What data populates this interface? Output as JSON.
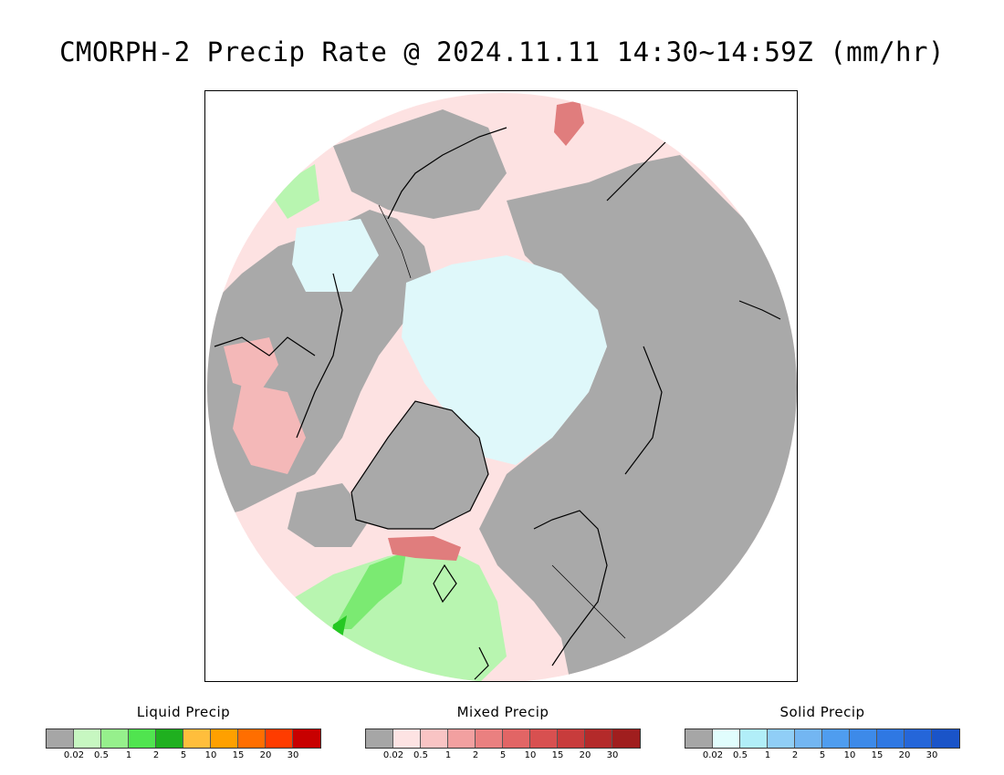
{
  "title": "CMORPH-2 Precip Rate @ 2024.11.11 14:30~14:59Z (mm/hr)",
  "map": {
    "projection": "north polar stereographic",
    "colors": {
      "no_precip": "#a9a9a9",
      "ocean_light_rain": "#fde2e2",
      "mixed_medium": "#f4b8b8",
      "mixed_heavy": "#e07d7d",
      "snow_light": "#dff8fa",
      "rain_light": "#b8f5b0",
      "rain_medium": "#7bea72",
      "rain_heavy": "#25c823",
      "coastline": "#000000"
    }
  },
  "legends": [
    {
      "title": "Liquid Precip",
      "colors": [
        "#a6a6a6",
        "#c7f7c1",
        "#96f08c",
        "#50e44f",
        "#1fb01f",
        "#ffbe3c",
        "#ffa000",
        "#ff6e00",
        "#ff3c00",
        "#c80000"
      ],
      "ticks": [
        "0.02",
        "0.5",
        "1",
        "2",
        "5",
        "10",
        "15",
        "20",
        "30"
      ]
    },
    {
      "title": "Mixed Precip",
      "colors": [
        "#a6a6a6",
        "#fde3e3",
        "#f9c4c4",
        "#f2a0a0",
        "#ea8080",
        "#e26565",
        "#d85050",
        "#c83c3c",
        "#b42a2a",
        "#a01e1e"
      ],
      "ticks": [
        "0.02",
        "0.5",
        "1",
        "2",
        "5",
        "10",
        "15",
        "20",
        "30"
      ]
    },
    {
      "title": "Solid Precip",
      "colors": [
        "#a6a6a6",
        "#e1fdfd",
        "#b1eef8",
        "#90cef6",
        "#73b6f2",
        "#4f9def",
        "#3d8ae9",
        "#2f78e3",
        "#2566d9",
        "#1a54c8"
      ],
      "ticks": [
        "0.02",
        "0.5",
        "1",
        "2",
        "5",
        "10",
        "15",
        "20",
        "30"
      ]
    }
  ]
}
